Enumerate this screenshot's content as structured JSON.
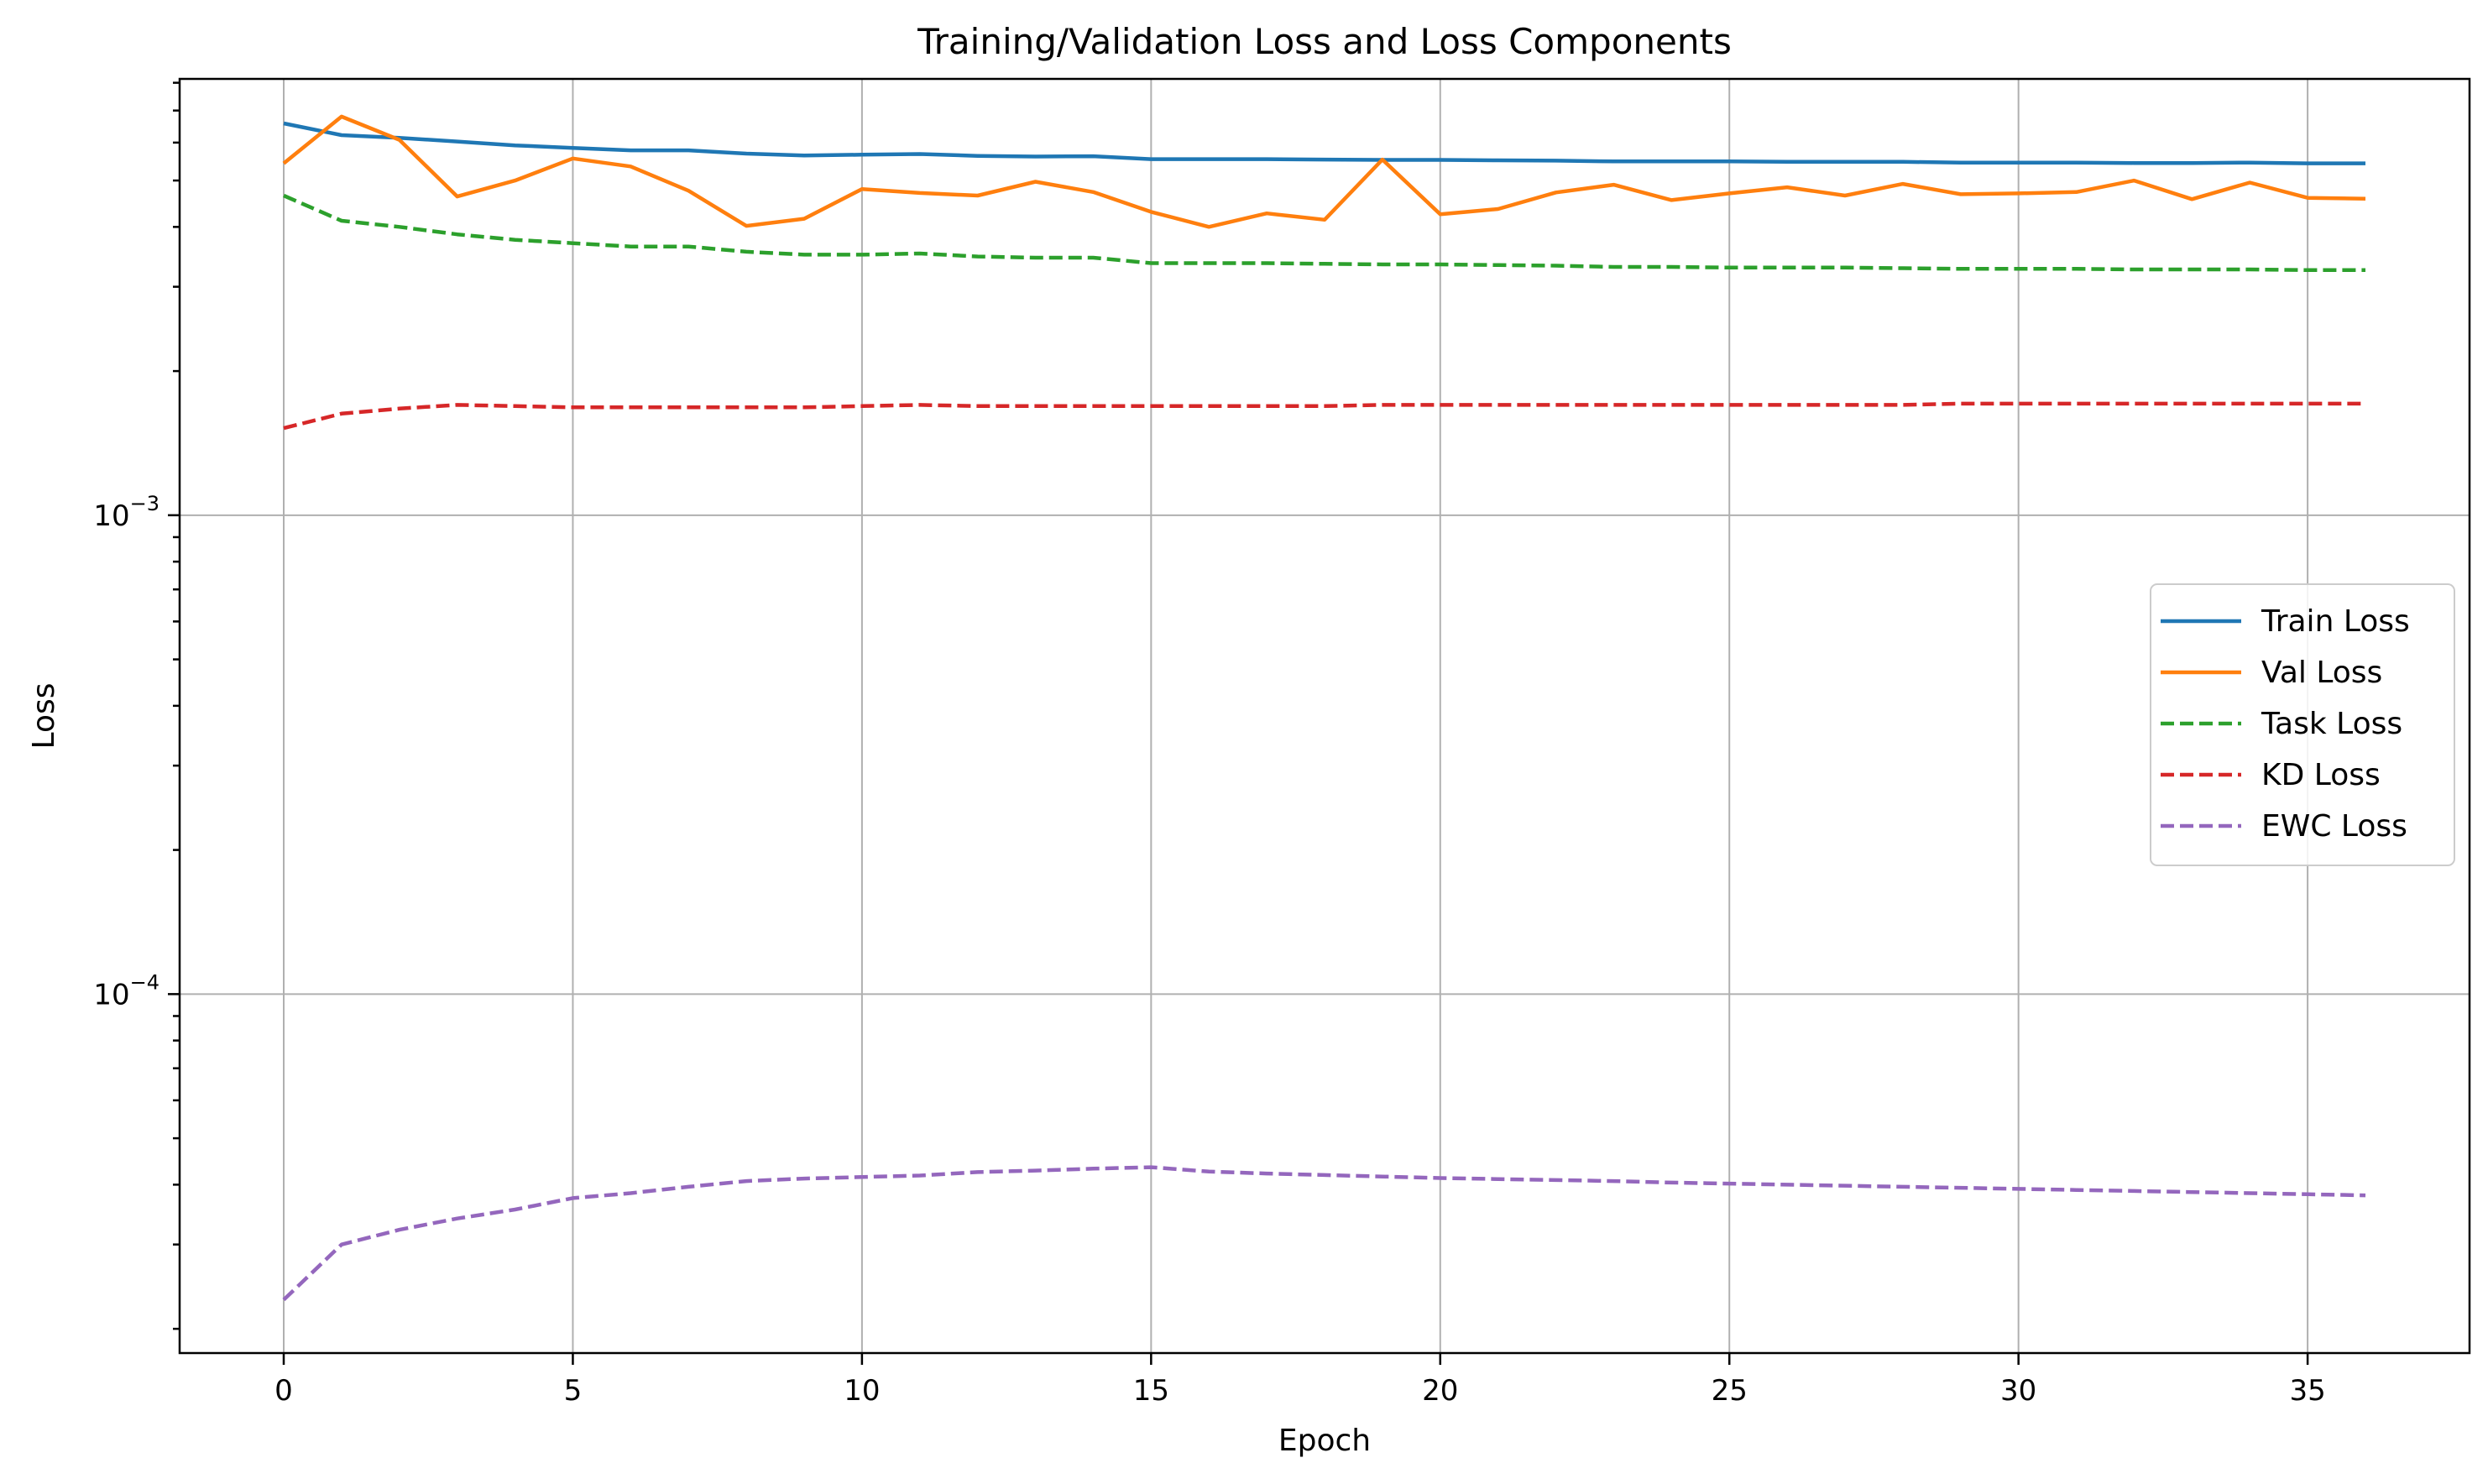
{
  "chart_data": {
    "type": "line",
    "title": "Training/Validation Loss and Loss Components",
    "xlabel": "Epoch",
    "ylabel": "Loss",
    "yscale": "log",
    "xlim": [
      -1.8,
      37.8
    ],
    "ylim": [
      1.78e-05,
      0.00815
    ],
    "x_ticks": [
      0,
      5,
      10,
      15,
      20,
      25,
      30,
      35
    ],
    "y_ticks": [
      {
        "value": 0.001,
        "base": "10",
        "exp": "−3"
      },
      {
        "value": 0.0001,
        "base": "10",
        "exp": "−4"
      }
    ],
    "grid": true,
    "legend_position": "center-right",
    "x": [
      0,
      1,
      2,
      3,
      4,
      5,
      6,
      7,
      8,
      9,
      10,
      11,
      12,
      13,
      14,
      15,
      16,
      17,
      18,
      19,
      20,
      21,
      22,
      23,
      24,
      25,
      26,
      27,
      28,
      29,
      30,
      31,
      32,
      33,
      34,
      35,
      36
    ],
    "series": [
      {
        "name": "Train Loss",
        "color": "#1f77b4",
        "dash": "solid",
        "values": [
          0.00658,
          0.00622,
          0.00614,
          0.00603,
          0.00592,
          0.00585,
          0.00578,
          0.00578,
          0.00569,
          0.00564,
          0.00566,
          0.00568,
          0.00563,
          0.00561,
          0.00562,
          0.00554,
          0.00554,
          0.00554,
          0.00553,
          0.00552,
          0.00552,
          0.00551,
          0.0055,
          0.00548,
          0.00548,
          0.00548,
          0.00547,
          0.00547,
          0.00547,
          0.00545,
          0.00545,
          0.00545,
          0.00544,
          0.00544,
          0.00545,
          0.00543,
          0.00543
        ]
      },
      {
        "name": "Val Loss",
        "color": "#ff7f0e",
        "dash": "solid",
        "values": [
          0.00543,
          0.0068,
          0.00608,
          0.00463,
          0.005,
          0.00556,
          0.00535,
          0.00476,
          0.00402,
          0.00416,
          0.0048,
          0.00471,
          0.00465,
          0.00497,
          0.00473,
          0.0043,
          0.004,
          0.00427,
          0.00414,
          0.00553,
          0.00425,
          0.00436,
          0.00472,
          0.0049,
          0.00455,
          0.0047,
          0.00484,
          0.00465,
          0.00492,
          0.00468,
          0.0047,
          0.00473,
          0.005,
          0.00457,
          0.00495,
          0.0046,
          0.00458
        ]
      },
      {
        "name": "Task Loss",
        "color": "#2ca02c",
        "dash": "dashed",
        "values": [
          0.00465,
          0.00412,
          0.004,
          0.00386,
          0.00376,
          0.0037,
          0.00364,
          0.00364,
          0.00355,
          0.0035,
          0.0035,
          0.00352,
          0.00347,
          0.00345,
          0.00345,
          0.00336,
          0.00336,
          0.00336,
          0.00335,
          0.00334,
          0.00334,
          0.00333,
          0.00332,
          0.0033,
          0.0033,
          0.00329,
          0.00329,
          0.00329,
          0.00328,
          0.00327,
          0.00327,
          0.00327,
          0.00326,
          0.00326,
          0.00326,
          0.00325,
          0.00325
        ]
      },
      {
        "name": "KD Loss",
        "color": "#d62728",
        "dash": "dashed",
        "values": [
          0.00152,
          0.00163,
          0.00167,
          0.0017,
          0.00169,
          0.00168,
          0.00168,
          0.00168,
          0.00168,
          0.00168,
          0.00169,
          0.0017,
          0.00169,
          0.00169,
          0.00169,
          0.00169,
          0.00169,
          0.00169,
          0.00169,
          0.0017,
          0.0017,
          0.0017,
          0.0017,
          0.0017,
          0.0017,
          0.0017,
          0.0017,
          0.0017,
          0.0017,
          0.00171,
          0.00171,
          0.00171,
          0.00171,
          0.00171,
          0.00171,
          0.00171,
          0.00171
        ]
      },
      {
        "name": "EWC Loss",
        "color": "#9467bd",
        "dash": "dashed",
        "values": [
          2.3e-05,
          3e-05,
          3.22e-05,
          3.4e-05,
          3.55e-05,
          3.75e-05,
          3.84e-05,
          3.96e-05,
          4.07e-05,
          4.12e-05,
          4.15e-05,
          4.18e-05,
          4.25e-05,
          4.28e-05,
          4.32e-05,
          4.35e-05,
          4.26e-05,
          4.22e-05,
          4.19e-05,
          4.16e-05,
          4.13e-05,
          4.11e-05,
          4.09e-05,
          4.07e-05,
          4.04e-05,
          4.02e-05,
          4e-05,
          3.98e-05,
          3.96e-05,
          3.94e-05,
          3.92e-05,
          3.9e-05,
          3.88e-05,
          3.86e-05,
          3.84e-05,
          3.82e-05,
          3.8e-05
        ]
      }
    ]
  }
}
